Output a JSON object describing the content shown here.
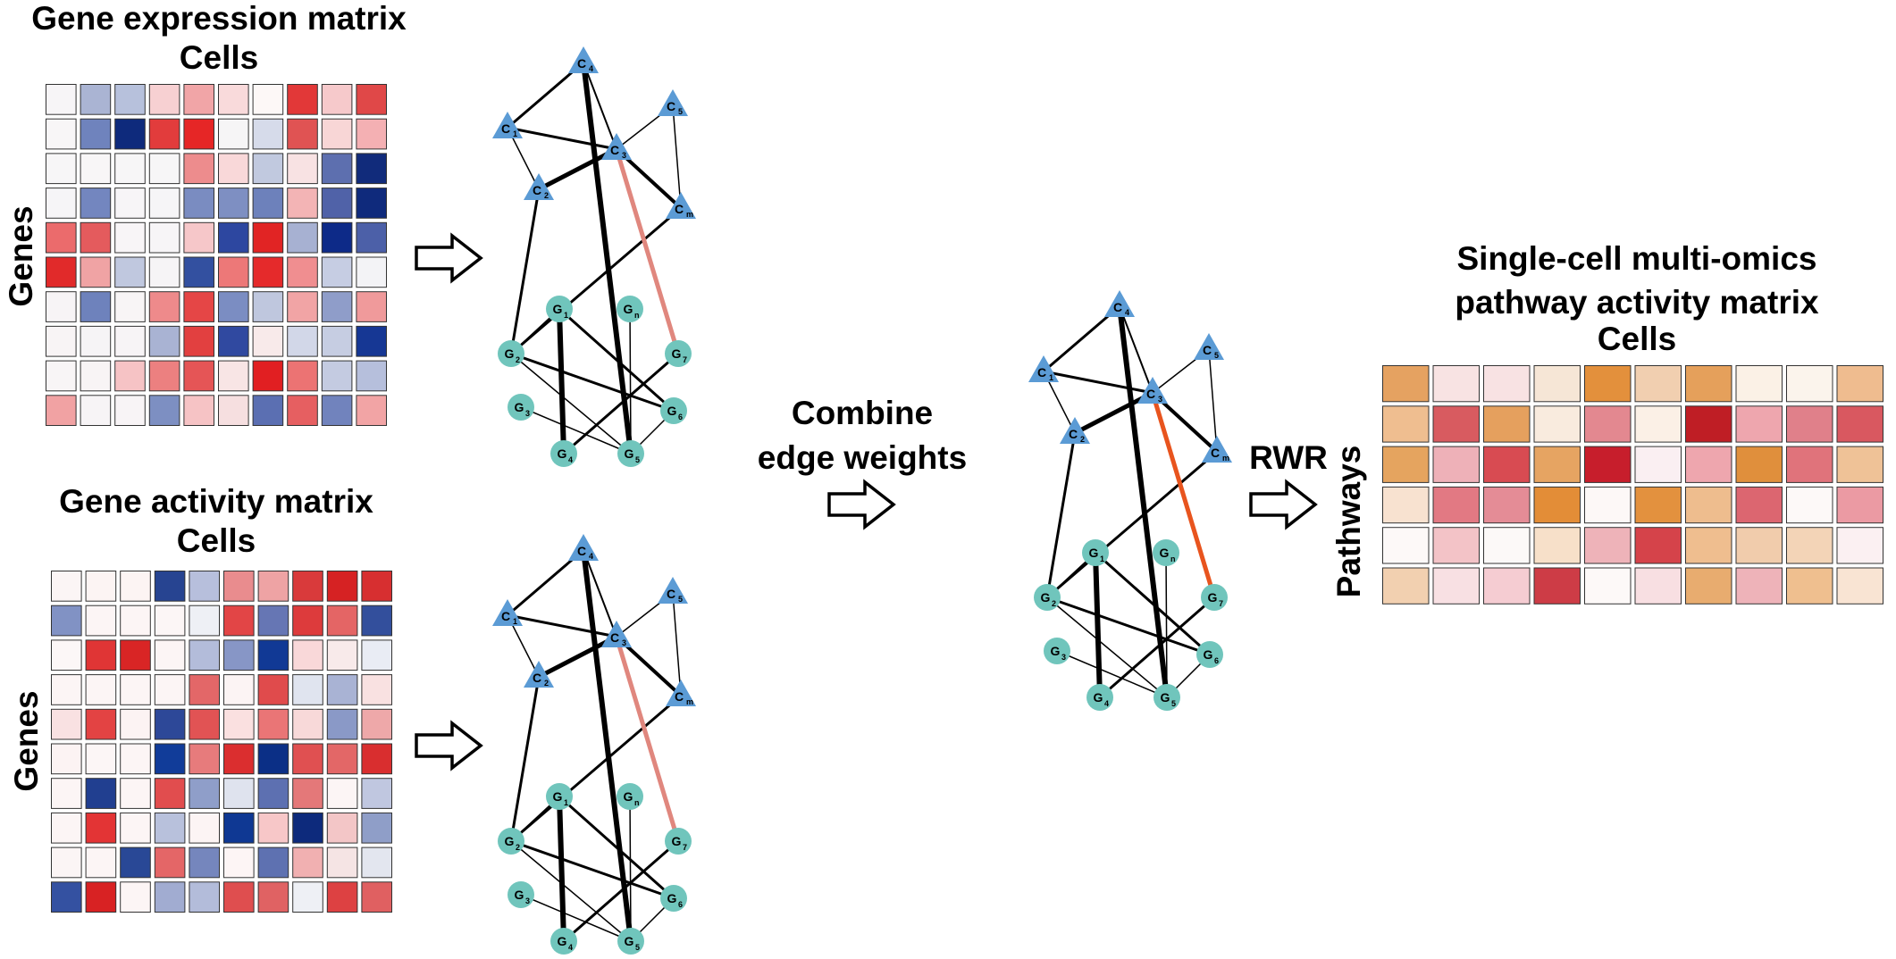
{
  "labels": {
    "expr_title": "Gene expression matrix",
    "cells": "Cells",
    "genes": "Genes",
    "activity_title": "Gene activity matrix",
    "combine_line1": "Combine",
    "combine_line2": "edge weights",
    "rwr": "RWR",
    "out_line1": "Single-cell multi-omics",
    "out_line2": "pathway activity matrix",
    "pathways": "Pathways"
  },
  "colors": {
    "cell_node": "#5b9bd5",
    "gene_node": "#70c5bc",
    "edge": "#000000",
    "highlight_pale": "#e0877e",
    "highlight_strong": "#e8541e"
  },
  "network": {
    "cell_nodes": [
      {
        "id": "C4",
        "letter": "C",
        "sub": "4"
      },
      {
        "id": "C1",
        "letter": "C",
        "sub": "1"
      },
      {
        "id": "C5",
        "letter": "C",
        "sub": "5"
      },
      {
        "id": "C3",
        "letter": "C",
        "sub": "3"
      },
      {
        "id": "C2",
        "letter": "C",
        "sub": "2"
      },
      {
        "id": "Cm",
        "letter": "C",
        "sub": "m"
      }
    ],
    "gene_nodes": [
      {
        "id": "G1",
        "letter": "G",
        "sub": "1"
      },
      {
        "id": "Gn",
        "letter": "G",
        "sub": "n"
      },
      {
        "id": "G2",
        "letter": "G",
        "sub": "2"
      },
      {
        "id": "G7",
        "letter": "G",
        "sub": "7"
      },
      {
        "id": "G3",
        "letter": "G",
        "sub": "3"
      },
      {
        "id": "G6",
        "letter": "G",
        "sub": "6"
      },
      {
        "id": "G4",
        "letter": "G",
        "sub": "4"
      },
      {
        "id": "G5",
        "letter": "G",
        "sub": "5"
      }
    ],
    "edges": [
      {
        "a": "C4",
        "b": "C1",
        "w": 3
      },
      {
        "a": "C4",
        "b": "C3",
        "w": 2
      },
      {
        "a": "C4",
        "b": "G5",
        "w": 6
      },
      {
        "a": "C1",
        "b": "C3",
        "w": 3
      },
      {
        "a": "C1",
        "b": "C2",
        "w": 1.5
      },
      {
        "a": "C2",
        "b": "C3",
        "w": 5
      },
      {
        "a": "C3",
        "b": "C5",
        "w": 1.5
      },
      {
        "a": "C3",
        "b": "Cm",
        "w": 4
      },
      {
        "a": "C5",
        "b": "Cm",
        "w": 1.5
      },
      {
        "a": "C2",
        "b": "G2",
        "w": 3
      },
      {
        "a": "Cm",
        "b": "G2",
        "w": 3
      },
      {
        "a": "C3",
        "b": "G7",
        "w": 5,
        "highlight": true
      },
      {
        "a": "G1",
        "b": "G2",
        "w": 1.5
      },
      {
        "a": "G1",
        "b": "G4",
        "w": 6
      },
      {
        "a": "G1",
        "b": "G6",
        "w": 3
      },
      {
        "a": "G2",
        "b": "G6",
        "w": 3
      },
      {
        "a": "G2",
        "b": "G5",
        "w": 1.5
      },
      {
        "a": "G7",
        "b": "G4",
        "w": 3
      },
      {
        "a": "G3",
        "b": "G5",
        "w": 1.5
      },
      {
        "a": "G5",
        "b": "G6",
        "w": 1.5
      },
      {
        "a": "Gn",
        "b": "G5",
        "w": 1.5
      }
    ]
  },
  "matrices": {
    "expression": [
      [
        "#f7f5f7",
        "#aab4d3",
        "#b7c1dc",
        "#f7d0d2",
        "#f1a5a7",
        "#f9dadb",
        "#fdf8f7",
        "#e23838",
        "#f6c9cb",
        "#e04848"
      ],
      [
        "#f8f6f7",
        "#6f83bd",
        "#0e2a7c",
        "#e23c3c",
        "#e62626",
        "#f6f5f6",
        "#d6dbea",
        "#e05353",
        "#f8d6d6",
        "#f4b0b3"
      ],
      [
        "#f7f6f7",
        "#f8f6f7",
        "#f7f6f7",
        "#f7f6f7",
        "#ed8c8d",
        "#f9d8d9",
        "#c1c9df",
        "#f8e2e3",
        "#5d6faf",
        "#112b7b"
      ],
      [
        "#f6f5f7",
        "#7386bf",
        "#f7f5f7",
        "#f6f5f7",
        "#7a8cc1",
        "#7e8fc2",
        "#6d81bb",
        "#f3b4b5",
        "#5062a8",
        "#0f2a7c"
      ],
      [
        "#eb6b6c",
        "#e45b5d",
        "#f8f5f7",
        "#f7f5f7",
        "#f6c7c9",
        "#2d47a0",
        "#e12424",
        "#a7b1d2",
        "#0d2a88",
        "#4c60a8"
      ],
      [
        "#e12a2a",
        "#f0a3a4",
        "#c0c8df",
        "#f6f4f6",
        "#3350a0",
        "#ed7878",
        "#e52a2b",
        "#f08e90",
        "#c6cde3",
        "#f3f3f6"
      ],
      [
        "#f7f4f6",
        "#6e82bc",
        "#f8f5f6",
        "#ee8a8b",
        "#e54646",
        "#7b8dc2",
        "#bfc7de",
        "#f1a4a5",
        "#8f9dc9",
        "#f09a9b"
      ],
      [
        "#f8f4f5",
        "#f6f4f6",
        "#f7f4f6",
        "#a9b3d3",
        "#e24040",
        "#3049a0",
        "#f8eaea",
        "#d2d7e8",
        "#c6cde2",
        "#163794"
      ],
      [
        "#f8f5f6",
        "#f8f4f5",
        "#f6c3c5",
        "#ec8080",
        "#e55556",
        "#f8e5e5",
        "#e11f22",
        "#ec7373",
        "#c4cbe1",
        "#b6bfdc"
      ],
      [
        "#f1a2a3",
        "#f7f4f6",
        "#f8f4f6",
        "#7d8fc2",
        "#f6c3c5",
        "#f6dfe0",
        "#5b6fb2",
        "#e65f61",
        "#7183bd",
        "#f2a4a5"
      ]
    ],
    "activity": [
      [
        "#fbf5f5",
        "#fcf4f3",
        "#fcf4f3",
        "#274491",
        "#b7bfdc",
        "#e98c8e",
        "#eea3a4",
        "#d93a3b",
        "#d62223",
        "#d72f30"
      ],
      [
        "#8192c4",
        "#fcf5f5",
        "#fcf5f5",
        "#fcf6f6",
        "#eef0f5",
        "#e24546",
        "#6676b4",
        "#dd3b3c",
        "#e46565",
        "#334f9c"
      ],
      [
        "#fcf7f7",
        "#e03535",
        "#d92525",
        "#fcf5f5",
        "#b3bcda",
        "#8796c6",
        "#113995",
        "#f9d8d9",
        "#f8eaea",
        "#e9ecf4"
      ],
      [
        "#fcf5f5",
        "#fcf5f5",
        "#fcf5f5",
        "#fcf5f5",
        "#e36768",
        "#fcf4f4",
        "#e04b4c",
        "#e0e4ef",
        "#a9b3d4",
        "#f9e1e1"
      ],
      [
        "#f9e1e2",
        "#e34343",
        "#fcf3f3",
        "#2d4898",
        "#e15354",
        "#fae0e0",
        "#ea7576",
        "#f8d9d9",
        "#8a99c7",
        "#eea8a9"
      ],
      [
        "#fcf3f3",
        "#fcf6f6",
        "#fcf5f5",
        "#113c99",
        "#e77b7c",
        "#db2e2f",
        "#0b2f86",
        "#e05051",
        "#e36767",
        "#d92e2f"
      ],
      [
        "#fcf5f5",
        "#213f90",
        "#fcf5f5",
        "#e14d4e",
        "#8f9ec9",
        "#dfe3ee",
        "#5d70b1",
        "#e47879",
        "#fcf5f5",
        "#c0c7e0"
      ],
      [
        "#fcf5f5",
        "#e33435",
        "#fcf5f5",
        "#b8c1dc",
        "#fcf4f4",
        "#0f3893",
        "#f7c7c8",
        "#0d2a7c",
        "#f3c6c7",
        "#8f9ec8"
      ],
      [
        "#fbf5f5",
        "#fcf5f5",
        "#294896",
        "#e46667",
        "#7586bd",
        "#fdf5f5",
        "#5e71b1",
        "#f1b0b1",
        "#f5e4e4",
        "#e3e6ef"
      ],
      [
        "#3451a1",
        "#d82223",
        "#fcf5f5",
        "#a1acd1",
        "#b3bcda",
        "#df4e4f",
        "#e06263",
        "#eef0f5",
        "#dd4142",
        "#e06061"
      ]
    ],
    "pathway": [
      [
        "#e5a261",
        "#f8e3e3",
        "#f8e2e3",
        "#f6e6d6",
        "#e3903c",
        "#f1cfb0",
        "#e5a05b",
        "#fbf1e6",
        "#fbf4ec",
        "#efbc8f"
      ],
      [
        "#efbe90",
        "#d85b60",
        "#e5a05e",
        "#f9ebde",
        "#e38890",
        "#fbf0e6",
        "#bf1e25",
        "#eea6ae",
        "#e0808a",
        "#d95860"
      ],
      [
        "#e5a45f",
        "#eeb1b8",
        "#d84b52",
        "#e6a462",
        "#c71e2c",
        "#faeff2",
        "#eea6ae",
        "#e08f3c",
        "#e0737b",
        "#efc297"
      ],
      [
        "#f8e2d0",
        "#e27983",
        "#e48c96",
        "#e38d37",
        "#fdf8f7",
        "#e3913e",
        "#eebd8e",
        "#dc6670",
        "#fdf9f8",
        "#eb9aa3"
      ],
      [
        "#fdf9f8",
        "#f3c3c7",
        "#fcf9f8",
        "#f7e0c9",
        "#eeb3b9",
        "#d5434a",
        "#efbe8f",
        "#f1ccac",
        "#f3d4b7",
        "#fbf0f2"
      ],
      [
        "#f2d0b0",
        "#f8e0e3",
        "#f5ccd2",
        "#cd3c46",
        "#fdf9f8",
        "#f8dfe2",
        "#e8ac6f",
        "#eeb3b9",
        "#efbf8f",
        "#f9e4d3"
      ]
    ]
  }
}
